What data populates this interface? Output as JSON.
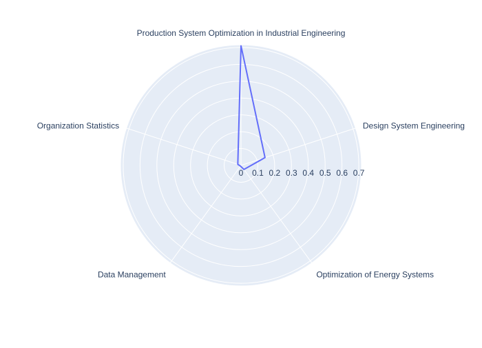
{
  "chart_data": {
    "type": "radar",
    "categories": [
      "Production System Optimization in Industrial Engineering",
      "Design System Engineering",
      "Optimization of Energy Systems",
      "Data Management",
      "Organization Statistics"
    ],
    "series": [
      {
        "values": [
          0.71,
          0.15,
          0.03,
          0.005,
          0.02
        ]
      }
    ],
    "radial_ticks": [
      "0",
      "0.1",
      "0.2",
      "0.3",
      "0.4",
      "0.5",
      "0.6",
      "0.7"
    ],
    "radial_range": [
      0,
      0.72
    ],
    "grid": true,
    "legend": false,
    "colors": {
      "series": "#636efa",
      "background": "#e5ecf6",
      "grid": "#ffffff",
      "text": "#2a3f5f"
    }
  }
}
